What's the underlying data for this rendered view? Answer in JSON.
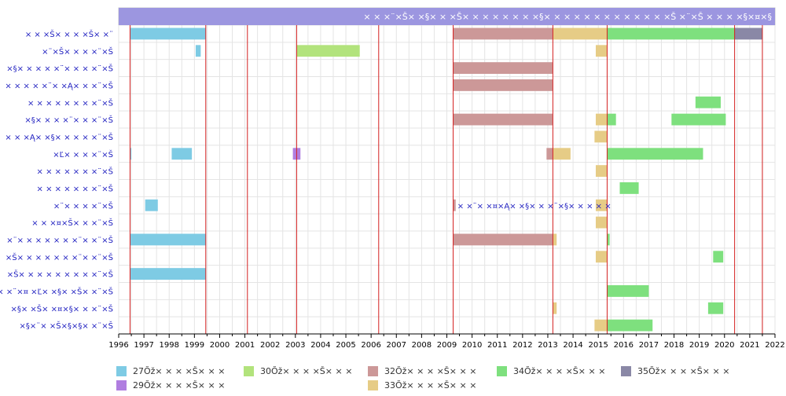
{
  "chart_data": {
    "type": "timeline",
    "title": "× × ×¨×Š×  ×§× × ×Š× × ×  × × × × ×§×  × × × × × × ×  × × × × ×Š ×¨×Š × × × ×§×¤×§",
    "xlim": [
      1996,
      2022
    ],
    "x_ticks": [
      "1996",
      "1997",
      "1998",
      "1999",
      "2000",
      "2001",
      "2002",
      "2003",
      "2004",
      "2005",
      "2006",
      "2007",
      "2008",
      "2009",
      "2010",
      "2011",
      "2012",
      "2013",
      "2014",
      "2015",
      "2016",
      "2017",
      "2018",
      "2019",
      "2020",
      "2021",
      "2022"
    ],
    "vertical_markers": [
      1996.45,
      1999.45,
      2001.1,
      2003.05,
      2006.3,
      2009.25,
      2013.2,
      2015.35,
      2020.4,
      2021.5
    ],
    "grid": true,
    "rows": [
      "× × ×Š× × ×  ×Š× ×¨",
      "×¨×Š× × ×  ×¨×Š",
      "×§×  × × × ×¨× × ×  ×¨×Š",
      "× × × × ×¨× ×Ą× ×  ×¨×Š",
      "× × × × × × ×  ×¨×Š",
      "×§× × × ×¨× ×  ×¨×Š",
      "× × ×Ą×  ×§× × × ×  ×¨×Š",
      "×Ľ× × ×  ×¨×Š",
      "× × × × × ×  ×¨×Š",
      "× × × × × ×  ×¨×Š",
      "×¨× × ×  ×¨×Š",
      "× × ×¤×Š× ×  ×¨×Š",
      "×¨×  × × × × × ×¨×  ×¨×Š",
      "×Š× ×  × × × × ×¨×  ×¨×Š",
      "×Š× ×  × × × × × ×  ×¨×Š",
      "× × ×¨×¤ ×Ľ× ×§× ×Š×  ×¨×Š",
      "×§× ×Š× ×¤×§× ×  ×¨×Š",
      "×§×¨× ×Š×§×§×  ×¨×Š"
    ],
    "series": [
      {
        "name": "27Ŏž×  × × ×Š× × ×",
        "color": "#7ecbe4"
      },
      {
        "name": "29Ŏž×  × × ×Š× × ×",
        "color": "#b07ee0"
      },
      {
        "name": "30Ŏž×  × × ×Š× × ×",
        "color": "#b2e37c"
      },
      {
        "name": "32Ŏž×  × × ×Š× × ×",
        "color": "#cc9898"
      },
      {
        "name": "33Ŏž×  × × ×Š× × ×",
        "color": "#e6cc86"
      },
      {
        "name": "34Ŏž×  × × ×Š× × ×",
        "color": "#7ee07e"
      },
      {
        "name": "35Ŏž×  × × ×Š× × ×",
        "color": "#8a88a6"
      }
    ],
    "bars": [
      {
        "row": 0,
        "series": 0,
        "start": 1996.45,
        "end": 1999.45
      },
      {
        "row": 0,
        "series": 3,
        "start": 2009.25,
        "end": 2013.2
      },
      {
        "row": 0,
        "series": 4,
        "start": 2013.2,
        "end": 2015.35
      },
      {
        "row": 0,
        "series": 5,
        "start": 2015.35,
        "end": 2020.4
      },
      {
        "row": 0,
        "series": 6,
        "start": 2020.4,
        "end": 2021.5
      },
      {
        "row": 1,
        "series": 0,
        "start": 1999.05,
        "end": 1999.25
      },
      {
        "row": 1,
        "series": 2,
        "start": 2003.05,
        "end": 2005.55
      },
      {
        "row": 1,
        "series": 4,
        "start": 2014.9,
        "end": 2015.35
      },
      {
        "row": 2,
        "series": 3,
        "start": 2009.25,
        "end": 2013.2
      },
      {
        "row": 3,
        "series": 3,
        "start": 2009.25,
        "end": 2013.2
      },
      {
        "row": 4,
        "series": 5,
        "start": 2018.85,
        "end": 2019.85
      },
      {
        "row": 5,
        "series": 3,
        "start": 2009.25,
        "end": 2013.2
      },
      {
        "row": 5,
        "series": 4,
        "start": 2014.9,
        "end": 2015.35
      },
      {
        "row": 5,
        "series": 5,
        "start": 2015.35,
        "end": 2015.7
      },
      {
        "row": 5,
        "series": 5,
        "start": 2017.9,
        "end": 2020.05
      },
      {
        "row": 6,
        "series": 4,
        "start": 2014.85,
        "end": 2015.35
      },
      {
        "row": 7,
        "series": 0,
        "start": 1996.45,
        "end": 1996.5
      },
      {
        "row": 7,
        "series": 0,
        "start": 1998.1,
        "end": 1998.9
      },
      {
        "row": 7,
        "series": 1,
        "start": 2002.9,
        "end": 2003.2
      },
      {
        "row": 7,
        "series": 3,
        "start": 2012.95,
        "end": 2013.2
      },
      {
        "row": 7,
        "series": 4,
        "start": 2013.2,
        "end": 2013.9
      },
      {
        "row": 7,
        "series": 5,
        "start": 2015.35,
        "end": 2019.15
      },
      {
        "row": 8,
        "series": 4,
        "start": 2014.9,
        "end": 2015.35
      },
      {
        "row": 9,
        "series": 5,
        "start": 2015.85,
        "end": 2016.6
      },
      {
        "row": 10,
        "series": 0,
        "start": 1997.05,
        "end": 1997.55
      },
      {
        "row": 10,
        "series": 3,
        "start": 2009.25,
        "end": 2009.35
      },
      {
        "row": 10,
        "series": 4,
        "start": 2014.9,
        "end": 2015.35
      },
      {
        "row": 11,
        "series": 4,
        "start": 2014.9,
        "end": 2015.35
      },
      {
        "row": 12,
        "series": 0,
        "start": 1996.45,
        "end": 1999.45
      },
      {
        "row": 12,
        "series": 3,
        "start": 2009.25,
        "end": 2013.2
      },
      {
        "row": 12,
        "series": 4,
        "start": 2013.2,
        "end": 2013.35
      },
      {
        "row": 12,
        "series": 5,
        "start": 2015.35,
        "end": 2015.45
      },
      {
        "row": 13,
        "series": 4,
        "start": 2014.9,
        "end": 2015.35
      },
      {
        "row": 13,
        "series": 5,
        "start": 2019.55,
        "end": 2019.95
      },
      {
        "row": 14,
        "series": 0,
        "start": 1996.45,
        "end": 1999.45
      },
      {
        "row": 15,
        "series": 5,
        "start": 2015.35,
        "end": 2017.0
      },
      {
        "row": 16,
        "series": 4,
        "start": 2013.2,
        "end": 2013.35
      },
      {
        "row": 16,
        "series": 5,
        "start": 2019.35,
        "end": 2019.95
      },
      {
        "row": 17,
        "series": 4,
        "start": 2014.85,
        "end": 2015.35
      },
      {
        "row": 17,
        "series": 5,
        "start": 2015.35,
        "end": 2017.15
      }
    ],
    "annotations": [
      {
        "row": 10,
        "x": 2009.35,
        "text": "× ×¨× ×¤×Ą×  ×§× × ×¨×§×  × × × ×"
      }
    ],
    "legend_order": [
      0,
      2,
      3,
      5,
      6,
      1,
      4
    ],
    "legend_position": "bottom"
  }
}
